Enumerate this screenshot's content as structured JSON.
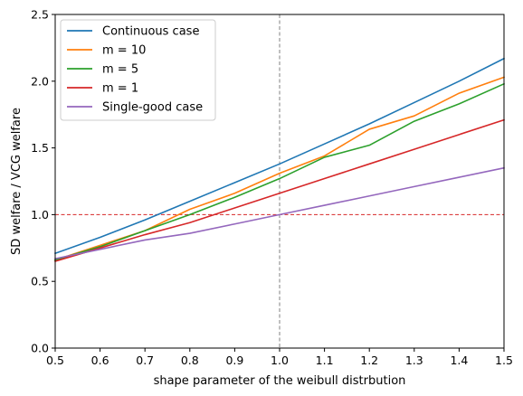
{
  "chart_data": {
    "type": "line",
    "title": "",
    "xlabel": "shape parameter of the weibull distrbution",
    "ylabel": "SD welfare / VCG welfare",
    "xlim": [
      0.5,
      1.5
    ],
    "ylim": [
      0.0,
      2.5
    ],
    "xticks": [
      "0.5",
      "0.6",
      "0.7",
      "0.8",
      "0.9",
      "1.0",
      "1.1",
      "1.2",
      "1.3",
      "1.4",
      "1.5"
    ],
    "yticks": [
      "0.0",
      "0.5",
      "1.0",
      "1.5",
      "2.0",
      "2.5"
    ],
    "grid": false,
    "legend_position": "top-left",
    "reference_lines": [
      {
        "orientation": "horizontal",
        "value": 1.0,
        "color": "#d62728",
        "style": "dashed"
      },
      {
        "orientation": "vertical",
        "value": 1.0,
        "color": "#808080",
        "style": "dashed"
      }
    ],
    "x": [
      0.5,
      0.6,
      0.7,
      0.8,
      0.9,
      1.0,
      1.1,
      1.2,
      1.3,
      1.4,
      1.5
    ],
    "series": [
      {
        "name": "Continuous case",
        "color": "#1f77b4",
        "values": [
          0.71,
          0.83,
          0.96,
          1.1,
          1.24,
          1.38,
          1.53,
          1.68,
          1.84,
          2.0,
          2.17
        ]
      },
      {
        "name": "m = 10",
        "color": "#ff7f0e",
        "values": [
          0.66,
          0.77,
          0.88,
          1.04,
          1.16,
          1.31,
          1.44,
          1.64,
          1.74,
          1.91,
          2.03
        ]
      },
      {
        "name": "m = 5",
        "color": "#2ca02c",
        "values": [
          0.66,
          0.76,
          0.88,
          1.0,
          1.13,
          1.27,
          1.43,
          1.52,
          1.7,
          1.83,
          1.98
        ]
      },
      {
        "name": "m = 1",
        "color": "#d62728",
        "values": [
          0.65,
          0.75,
          0.85,
          0.94,
          1.05,
          1.16,
          1.27,
          1.38,
          1.49,
          1.6,
          1.71
        ]
      },
      {
        "name": "Single-good case",
        "color": "#9467bd",
        "values": [
          0.67,
          0.74,
          0.81,
          0.86,
          0.93,
          1.0,
          1.07,
          1.14,
          1.21,
          1.28,
          1.35
        ]
      }
    ]
  }
}
